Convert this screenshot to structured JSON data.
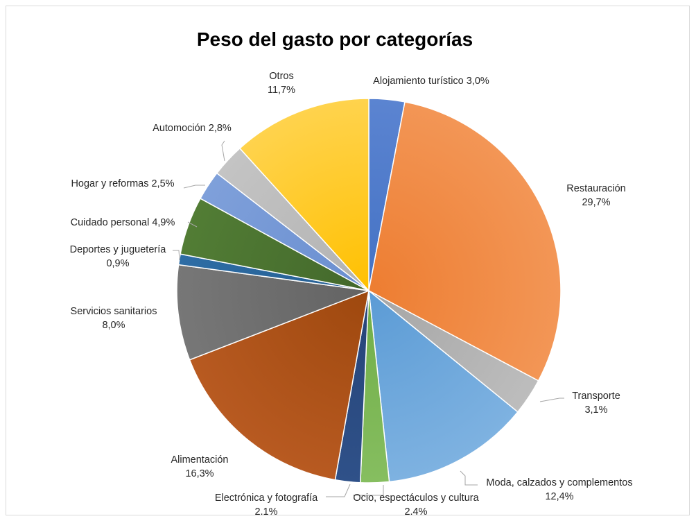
{
  "chart_data": {
    "type": "pie",
    "title": "Peso del gasto por categorías",
    "slices": [
      {
        "label": "Alojamiento turístico",
        "value": 3.0,
        "display": "3,0%",
        "color": "#4472C4",
        "color_light": "#5b84d1"
      },
      {
        "label": "Restauración",
        "value": 29.7,
        "display": "29,7%",
        "color": "#ED7D31",
        "color_light": "#f39656"
      },
      {
        "label": "Transporte",
        "value": 3.1,
        "display": "3,1%",
        "color": "#A5A5A5",
        "color_light": "#bdbdbd"
      },
      {
        "label": "Moda, calzados y complementos",
        "value": 12.4,
        "display": "12,4%",
        "color": "#5B9BD5",
        "color_light": "#7eb2e1"
      },
      {
        "label": "Ocio, espectáculos y cultura",
        "value": 2.4,
        "display": "2,4%",
        "color": "#70AD47",
        "color_light": "#86be60"
      },
      {
        "label": "Electrónica y fotografía",
        "value": 2.1,
        "display": "2,1%",
        "color": "#264478",
        "color_light": "#2f5189"
      },
      {
        "label": "Alimentación",
        "value": 16.3,
        "display": "16,3%",
        "color": "#9E480E",
        "color_light": "#b85a21"
      },
      {
        "label": "Servicios sanitarios",
        "value": 8.0,
        "display": "8,0%",
        "color": "#636363",
        "color_light": "#777777"
      },
      {
        "label": "Deportes y juguetería",
        "value": 0.9,
        "display": "0,9%",
        "color": "#255E91",
        "color_light": "#2e6da5"
      },
      {
        "label": "Cuidado personal",
        "value": 4.9,
        "display": "4,9%",
        "color": "#43682B",
        "color_light": "#527d35"
      },
      {
        "label": "Hogar y reformas",
        "value": 2.5,
        "display": "2,5%",
        "color": "#698ED0",
        "color_light": "#7fa0da"
      },
      {
        "label": "Automoción",
        "value": 2.8,
        "display": "2,8%",
        "color": "#B2B2B2",
        "color_light": "#c4c4c4"
      },
      {
        "label": "Otros",
        "value": 11.7,
        "display": "11,7%",
        "color": "#FFC000",
        "color_light": "#ffd34d"
      }
    ]
  }
}
